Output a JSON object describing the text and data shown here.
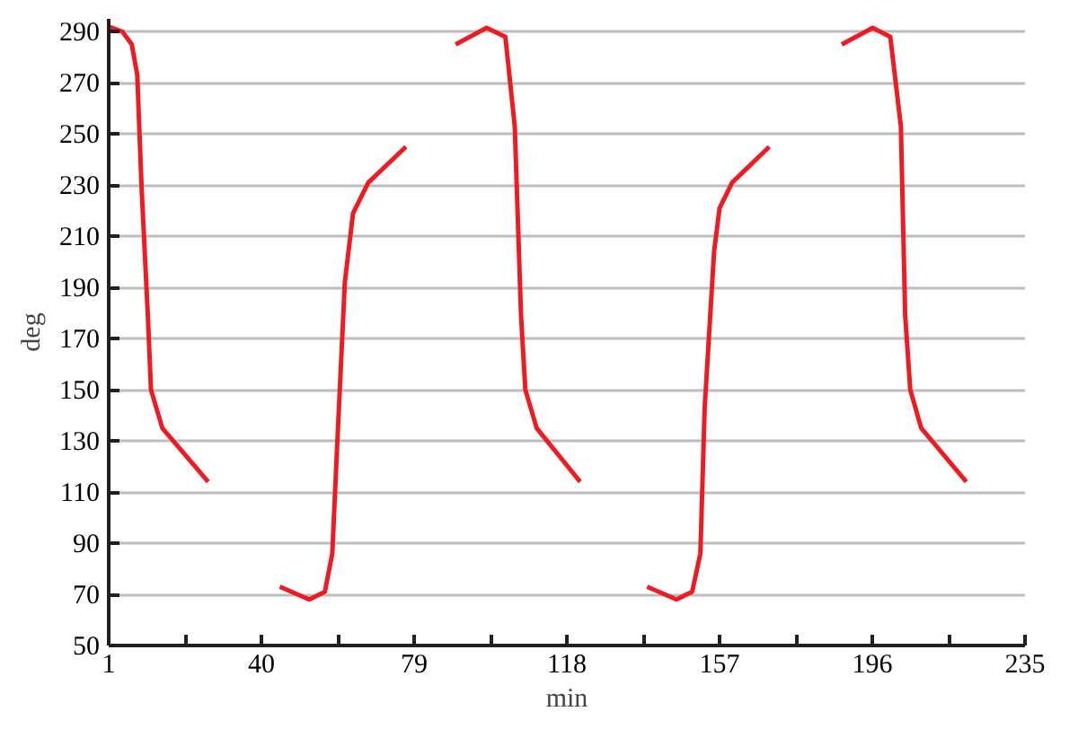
{
  "chart_data": {
    "type": "line",
    "xlabel": "min",
    "ylabel": "deg",
    "xlim": [
      1,
      235
    ],
    "ylim": [
      50,
      295
    ],
    "xticks": [
      1,
      {
        "value": 20.5,
        "label": null
      },
      40,
      {
        "value": 59.5,
        "label": null
      },
      79,
      {
        "value": 98.5,
        "label": null
      },
      118,
      {
        "value": 137.5,
        "label": null
      },
      157,
      {
        "value": 176.5,
        "label": null
      },
      196,
      {
        "value": 215.5,
        "label": null
      },
      235
    ],
    "yticks": [
      50,
      70,
      90,
      110,
      130,
      150,
      170,
      190,
      210,
      230,
      250,
      270,
      290
    ],
    "grid": "y",
    "marker": "none",
    "line_style": "solid",
    "series": [
      {
        "color": "#ed1c24",
        "x": [
          1,
          4.5,
          6.9,
          8.3,
          9.4,
          11.0,
          11.8,
          14.7,
          26.4,
          35,
          44.7,
          52.2,
          56.2,
          58.1,
          59.4,
          61.3,
          63.4,
          67.3,
          76.9,
          83,
          89.6,
          97.5,
          102.3,
          104.7,
          106.3,
          107.4,
          110.3,
          121.4,
          130,
          138.5,
          146.0,
          150.0,
          152.1,
          153.2,
          155.6,
          157.0,
          160.2,
          169.7,
          179,
          188.2,
          196.1,
          200.6,
          203.3,
          204.4,
          205.7,
          208.5,
          220.0
        ],
        "values": [
          292,
          290,
          285,
          273,
          229,
          179,
          150,
          135,
          114,
          null,
          73,
          68,
          71,
          86,
          130,
          192,
          219,
          231,
          245,
          null,
          285,
          291.5,
          288,
          253,
          179,
          150,
          135,
          114,
          null,
          73,
          68,
          71,
          86,
          143,
          204,
          221,
          231,
          245,
          null,
          285,
          291.5,
          288,
          253,
          179,
          150,
          135,
          114
        ]
      }
    ]
  }
}
